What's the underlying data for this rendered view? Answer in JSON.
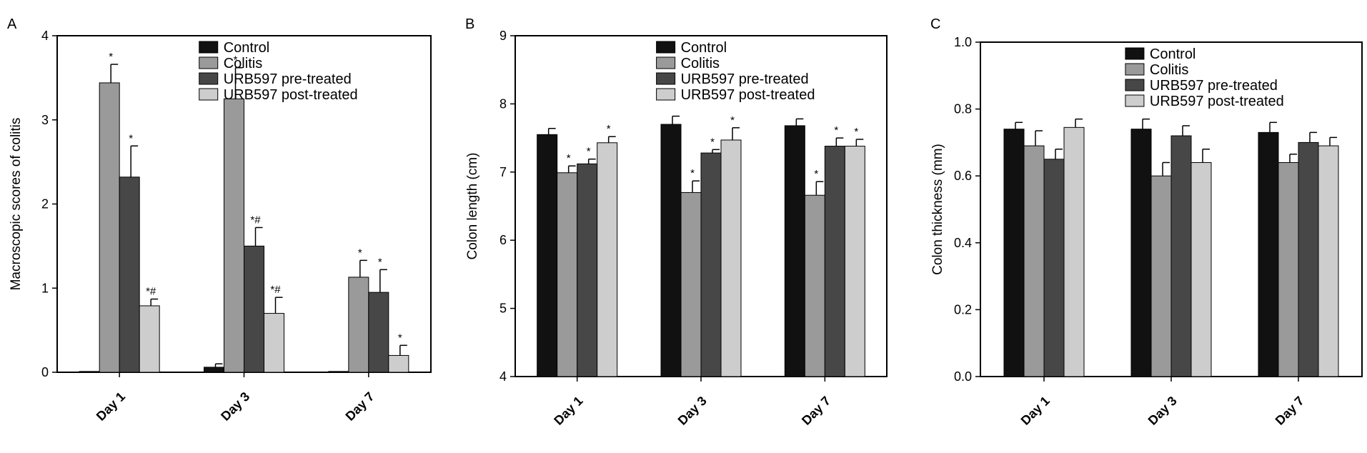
{
  "colors": {
    "Control": "#111111",
    "Colitis": "#9a9a9a",
    "URB597 pre-treated": "#474747",
    "URB597 post-treated": "#cdcdcd"
  },
  "legend": [
    "Control",
    "Colitis",
    "URB597 pre-treated",
    "URB597 post-treated"
  ],
  "chart_data": [
    {
      "panel": "A",
      "type": "bar",
      "ylabel": "Macroscopic scores of colitis",
      "xlabel": "",
      "ylim": [
        0,
        4
      ],
      "yticks": [
        "0",
        "1",
        "2",
        "3",
        "4"
      ],
      "categories": [
        "Day 1",
        "Day 3",
        "Day 7"
      ],
      "legend_position": "top-right",
      "series": [
        {
          "name": "Control",
          "values": [
            0.01,
            0.06,
            0.01
          ],
          "errors": [
            0,
            0.04,
            0
          ],
          "labels": [
            "",
            "",
            ""
          ]
        },
        {
          "name": "Colitis",
          "values": [
            3.44,
            3.25,
            1.13
          ],
          "errors": [
            0.22,
            0.37,
            0.2
          ],
          "labels": [
            "*",
            "*",
            "*"
          ]
        },
        {
          "name": "URB597 pre-treated",
          "values": [
            2.32,
            1.5,
            0.95
          ],
          "errors": [
            0.37,
            0.22,
            0.27
          ],
          "labels": [
            "*",
            "*#",
            "*"
          ]
        },
        {
          "name": "URB597 post-treated",
          "values": [
            0.79,
            0.7,
            0.2
          ],
          "errors": [
            0.08,
            0.19,
            0.12
          ],
          "labels": [
            "*#",
            "*#",
            "*"
          ]
        }
      ]
    },
    {
      "panel": "B",
      "type": "bar",
      "ylabel": "Colon length (cm)",
      "xlabel": "",
      "ylim": [
        4,
        9
      ],
      "yticks": [
        "4",
        "5",
        "6",
        "7",
        "8",
        "9"
      ],
      "categories": [
        "Day 1",
        "Day 3",
        "Day 7"
      ],
      "legend_position": "top-right",
      "series": [
        {
          "name": "Control",
          "values": [
            7.55,
            7.7,
            7.68
          ],
          "errors": [
            0.09,
            0.12,
            0.1
          ],
          "labels": [
            "",
            "",
            ""
          ]
        },
        {
          "name": "Colitis",
          "values": [
            6.99,
            6.7,
            6.66
          ],
          "errors": [
            0.1,
            0.17,
            0.2
          ],
          "labels": [
            "*",
            "*",
            "*"
          ]
        },
        {
          "name": "URB597 pre-treated",
          "values": [
            7.12,
            7.28,
            7.38
          ],
          "errors": [
            0.07,
            0.05,
            0.12
          ],
          "labels": [
            "*",
            "*",
            "*"
          ]
        },
        {
          "name": "URB597 post-treated",
          "values": [
            7.43,
            7.47,
            7.38
          ],
          "errors": [
            0.09,
            0.18,
            0.1
          ],
          "labels": [
            "*",
            "*",
            "*"
          ]
        }
      ]
    },
    {
      "panel": "C",
      "type": "bar",
      "ylabel": "Colon thickness (mm)",
      "xlabel": "",
      "ylim": [
        0.0,
        1.0
      ],
      "yticks": [
        "0.0",
        "0.2",
        "0.4",
        "0.6",
        "0.8",
        "1.0"
      ],
      "categories": [
        "Day 1",
        "Day 3",
        "Day 7"
      ],
      "legend_position": "top-right",
      "series": [
        {
          "name": "Control",
          "values": [
            0.74,
            0.74,
            0.73
          ],
          "errors": [
            0.02,
            0.03,
            0.03
          ],
          "labels": [
            "",
            "",
            ""
          ]
        },
        {
          "name": "Colitis",
          "values": [
            0.69,
            0.6,
            0.64
          ],
          "errors": [
            0.045,
            0.04,
            0.025
          ],
          "labels": [
            "",
            "",
            ""
          ]
        },
        {
          "name": "URB597 pre-treated",
          "values": [
            0.65,
            0.72,
            0.7
          ],
          "errors": [
            0.03,
            0.03,
            0.03
          ],
          "labels": [
            "",
            "",
            ""
          ]
        },
        {
          "name": "URB597 post-treated",
          "values": [
            0.745,
            0.64,
            0.69
          ],
          "errors": [
            0.025,
            0.04,
            0.025
          ],
          "labels": [
            "",
            "",
            ""
          ]
        }
      ]
    }
  ]
}
